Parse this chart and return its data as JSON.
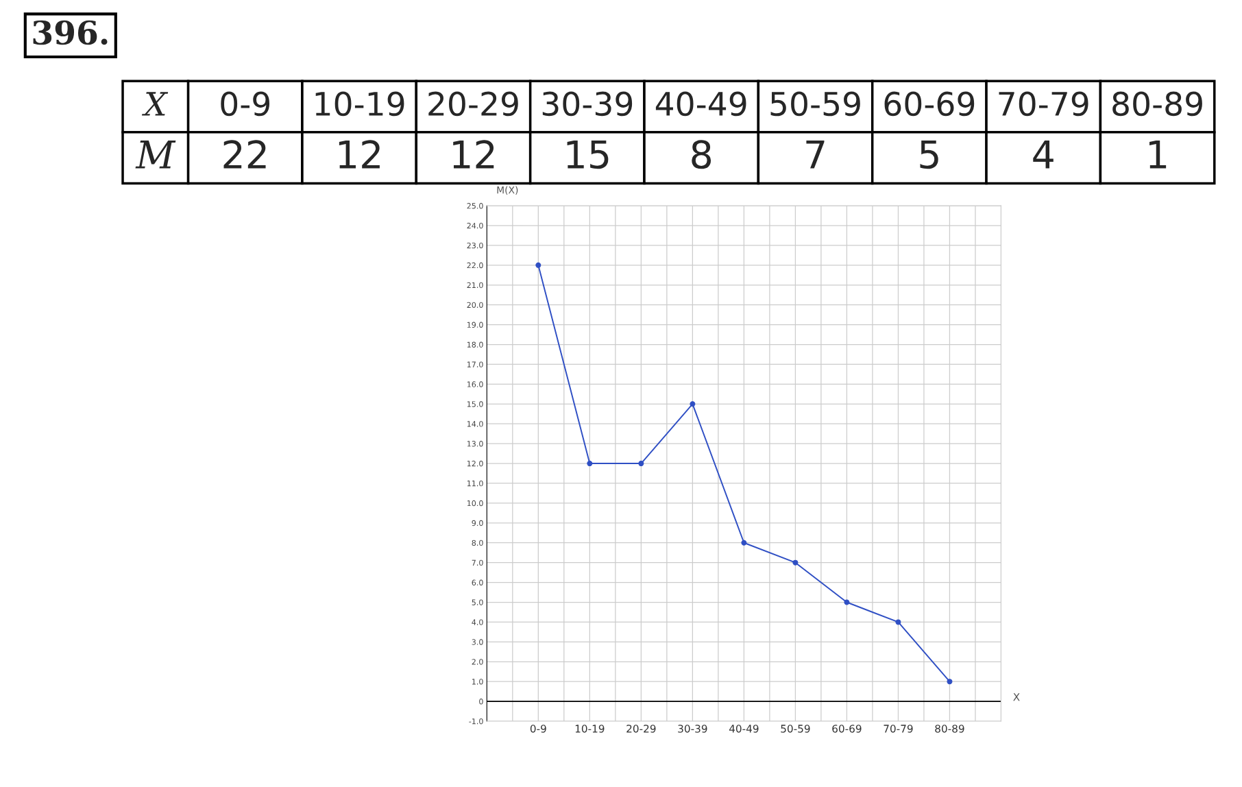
{
  "chart_data": [
    {
      "type": "other",
      "annotations": [
        "396."
      ],
      "xlabel": "X",
      "ylabel": "M",
      "categories": [
        "0-9",
        "10-19",
        "20-29",
        "30-39",
        "40-49",
        "50-59",
        "60-69",
        "70-79",
        "80-89"
      ],
      "values": [
        22,
        12,
        12,
        15,
        8,
        7,
        5,
        4,
        1
      ],
      "data_labels": true
    },
    {
      "type": "line",
      "xlabel": "X",
      "ylabel": "M(X)",
      "categories": [
        "0-9",
        "10-19",
        "20-29",
        "30-39",
        "40-49",
        "50-59",
        "60-69",
        "70-79",
        "80-89"
      ],
      "series": [
        {
          "color": "#2f4fc4",
          "values": [
            22,
            12,
            12,
            15,
            8,
            7,
            5,
            4,
            1
          ]
        }
      ],
      "marker": "circle",
      "line_style": "solid",
      "grid": true,
      "ylim": [
        -1,
        25
      ],
      "yticks": [
        {
          "value": -1,
          "label": "-1.0"
        },
        0,
        {
          "value": 1,
          "label": "1.0"
        },
        {
          "value": 2,
          "label": "2.0"
        },
        {
          "value": 3,
          "label": "3.0"
        },
        {
          "value": 4,
          "label": "4.0"
        },
        {
          "value": 5,
          "label": "5.0"
        },
        {
          "value": 6,
          "label": "6.0"
        },
        {
          "value": 7,
          "label": "7.0"
        },
        {
          "value": 8,
          "label": "8.0"
        },
        {
          "value": 9,
          "label": "9.0"
        },
        {
          "value": 10,
          "label": "10.0"
        },
        {
          "value": 11,
          "label": "11.0"
        },
        {
          "value": 12,
          "label": "12.0"
        },
        {
          "value": 13,
          "label": "13.0"
        },
        {
          "value": 14,
          "label": "14.0"
        },
        {
          "value": 15,
          "label": "15.0"
        },
        {
          "value": 16,
          "label": "16.0"
        },
        {
          "value": 17,
          "label": "17.0"
        },
        {
          "value": 18,
          "label": "18.0"
        },
        {
          "value": 19,
          "label": "19.0"
        },
        {
          "value": 20,
          "label": "20.0"
        },
        {
          "value": 21,
          "label": "21.0"
        },
        {
          "value": 22,
          "label": "22.0"
        },
        {
          "value": 23,
          "label": "23.0"
        },
        {
          "value": 24,
          "label": "24.0"
        },
        {
          "value": 25,
          "label": "25.0"
        }
      ]
    }
  ]
}
